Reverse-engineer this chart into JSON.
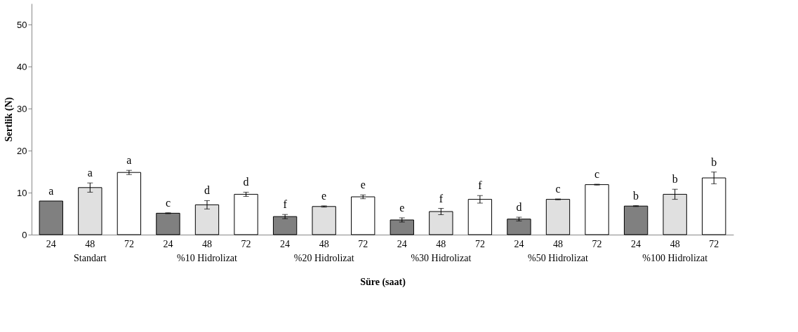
{
  "chart_data": {
    "type": "bar",
    "xlabel": "Süre (saat)",
    "ylabel": "Sertlik (N)",
    "categories": [
      "Standart",
      "%10 Hidrolizat",
      "%20 Hidrolizat",
      "%30 Hidrolizat",
      "%50 Hidrolizat",
      "%100 Hidrolizat"
    ],
    "series": [
      {
        "name": "24",
        "color": "#808080",
        "values": [
          8.0,
          5.1,
          4.3,
          3.5,
          3.7,
          6.8
        ],
        "errors": [
          null,
          0.1,
          0.5,
          0.5,
          0.45,
          0.1
        ],
        "value_labels": [
          "a",
          "c",
          "f",
          "e",
          "d",
          "b"
        ]
      },
      {
        "name": "48",
        "color": "#e0e0e0",
        "values": [
          11.2,
          7.1,
          6.7,
          5.5,
          8.4,
          9.6
        ],
        "errors": [
          1.1,
          1.0,
          0.15,
          0.75,
          0.1,
          1.2
        ],
        "value_labels": [
          "a",
          "d",
          "e",
          "f",
          "c",
          "b"
        ]
      },
      {
        "name": "72",
        "color": "#ffffff",
        "values": [
          14.8,
          9.6,
          9.0,
          8.4,
          11.9,
          13.5
        ],
        "errors": [
          0.5,
          0.5,
          0.45,
          0.9,
          0.1,
          1.4
        ],
        "value_labels": [
          "a",
          "d",
          "e",
          "f",
          "c",
          "b"
        ]
      }
    ],
    "ylim": [
      0,
      55
    ],
    "yticks": [
      0,
      10,
      20,
      30,
      40,
      50
    ],
    "grid": false
  }
}
